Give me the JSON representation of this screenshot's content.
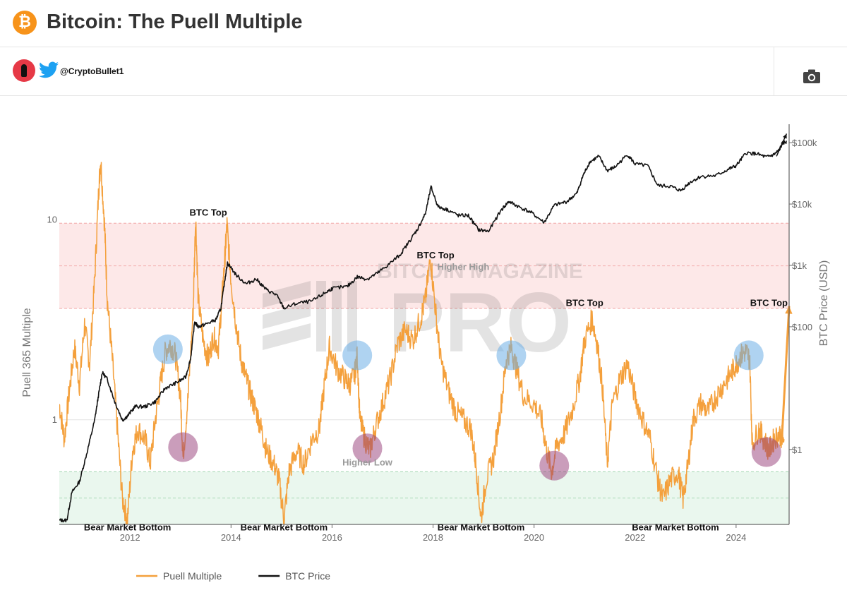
{
  "header": {
    "title": "Bitcoin: The Puell Multiple",
    "logo_icon": "bitcoin-logo-icon",
    "logo_glyph": "₿",
    "brand_color": "#f7931a"
  },
  "author": {
    "handle": "@CryptoBullet1",
    "avatar_icon": "avatar",
    "twitter_icon": "twitter-bird-icon",
    "camera_icon": "camera-icon"
  },
  "watermark": {
    "brand": "BITCOIN MAGAZINE",
    "product": "PRO"
  },
  "chart_data": {
    "type": "line",
    "title": "",
    "xlabel": "",
    "y_left_label": "Puell 365 Multiple",
    "y_right_label": "BTC Price (USD)",
    "y_left_scale": "log",
    "y_right_scale": "log",
    "y_left_ticks": [
      {
        "value": 1,
        "label": "1"
      },
      {
        "value": 10,
        "label": "10"
      }
    ],
    "y_right_ticks": [
      {
        "value": 1,
        "label": "$1"
      },
      {
        "value": 100,
        "label": "$100"
      },
      {
        "value": 1000,
        "label": "$1k"
      },
      {
        "value": 10000,
        "label": "$10k"
      },
      {
        "value": 100000,
        "label": "$100k"
      }
    ],
    "x_ticks": [
      {
        "value": 2012,
        "label": "2012"
      },
      {
        "value": 2014,
        "label": "2014"
      },
      {
        "value": 2016,
        "label": "2016"
      },
      {
        "value": 2018,
        "label": "2018"
      },
      {
        "value": 2020,
        "label": "2020"
      },
      {
        "value": 2022,
        "label": "2022"
      },
      {
        "value": 2024,
        "label": "2024"
      }
    ],
    "xlim": [
      2010.6,
      2025.05
    ],
    "ylim_left": [
      0.3,
      30
    ],
    "ylim_right": [
      0.06,
      200000
    ],
    "zones": [
      {
        "name": "overheated",
        "from": 3.6,
        "to": 9.6,
        "color": "#fde8e8"
      },
      {
        "name": "undervalued",
        "from": 0.3,
        "to": 0.55,
        "color": "#eaf7ee"
      }
    ],
    "legend_position": "bottom-left",
    "series": [
      {
        "name": "Puell Multiple",
        "color": "#f4a03c",
        "points": [
          [
            2010.6,
            1.2
          ],
          [
            2010.7,
            0.8
          ],
          [
            2010.8,
            1.4
          ],
          [
            2010.9,
            2.3
          ],
          [
            2011.0,
            1.5
          ],
          [
            2011.1,
            3.0
          ],
          [
            2011.2,
            1.9
          ],
          [
            2011.3,
            5.0
          ],
          [
            2011.38,
            14.0
          ],
          [
            2011.42,
            20.0
          ],
          [
            2011.5,
            9.0
          ],
          [
            2011.55,
            4.0
          ],
          [
            2011.65,
            2.0
          ],
          [
            2011.75,
            0.9
          ],
          [
            2011.85,
            0.4
          ],
          [
            2011.95,
            0.32
          ],
          [
            2012.05,
            0.7
          ],
          [
            2012.15,
            0.9
          ],
          [
            2012.3,
            0.8
          ],
          [
            2012.4,
            0.6
          ],
          [
            2012.5,
            1.0
          ],
          [
            2012.6,
            1.5
          ],
          [
            2012.7,
            2.2
          ],
          [
            2012.8,
            2.4
          ],
          [
            2012.9,
            2.1
          ],
          [
            2013.0,
            1.3
          ],
          [
            2013.05,
            0.65
          ],
          [
            2013.15,
            1.3
          ],
          [
            2013.25,
            3.5
          ],
          [
            2013.3,
            10.5
          ],
          [
            2013.35,
            4.0
          ],
          [
            2013.45,
            2.5
          ],
          [
            2013.55,
            2.0
          ],
          [
            2013.65,
            2.6
          ],
          [
            2013.75,
            2.3
          ],
          [
            2013.82,
            4.0
          ],
          [
            2013.88,
            6.5
          ],
          [
            2013.92,
            9.4
          ],
          [
            2014.0,
            5.0
          ],
          [
            2014.1,
            3.0
          ],
          [
            2014.2,
            2.0
          ],
          [
            2014.3,
            1.6
          ],
          [
            2014.4,
            1.3
          ],
          [
            2014.5,
            1.1
          ],
          [
            2014.6,
            0.9
          ],
          [
            2014.7,
            0.7
          ],
          [
            2014.85,
            0.6
          ],
          [
            2014.95,
            0.5
          ],
          [
            2015.05,
            0.32
          ],
          [
            2015.15,
            0.55
          ],
          [
            2015.3,
            0.7
          ],
          [
            2015.45,
            0.6
          ],
          [
            2015.6,
            0.8
          ],
          [
            2015.75,
            0.9
          ],
          [
            2015.85,
            1.5
          ],
          [
            2015.95,
            2.3
          ],
          [
            2016.1,
            1.8
          ],
          [
            2016.25,
            1.6
          ],
          [
            2016.35,
            1.5
          ],
          [
            2016.45,
            1.7
          ],
          [
            2016.5,
            2.1
          ],
          [
            2016.55,
            1.0
          ],
          [
            2016.65,
            0.8
          ],
          [
            2016.75,
            0.7
          ],
          [
            2016.85,
            0.9
          ],
          [
            2017.0,
            1.2
          ],
          [
            2017.15,
            1.6
          ],
          [
            2017.3,
            2.4
          ],
          [
            2017.45,
            2.8
          ],
          [
            2017.6,
            2.5
          ],
          [
            2017.75,
            3.2
          ],
          [
            2017.85,
            4.0
          ],
          [
            2017.95,
            6.5
          ],
          [
            2018.05,
            3.5
          ],
          [
            2018.15,
            2.0
          ],
          [
            2018.3,
            1.4
          ],
          [
            2018.45,
            1.1
          ],
          [
            2018.6,
            1.0
          ],
          [
            2018.75,
            0.9
          ],
          [
            2018.85,
            0.6
          ],
          [
            2018.95,
            0.32
          ],
          [
            2019.05,
            0.5
          ],
          [
            2019.2,
            0.65
          ],
          [
            2019.35,
            1.2
          ],
          [
            2019.45,
            2.0
          ],
          [
            2019.55,
            2.3
          ],
          [
            2019.65,
            1.8
          ],
          [
            2019.8,
            1.3
          ],
          [
            2020.0,
            1.2
          ],
          [
            2020.15,
            1.0
          ],
          [
            2020.25,
            0.7
          ],
          [
            2020.35,
            0.55
          ],
          [
            2020.45,
            0.75
          ],
          [
            2020.6,
            0.85
          ],
          [
            2020.75,
            1.1
          ],
          [
            2020.9,
            1.6
          ],
          [
            2021.0,
            2.5
          ],
          [
            2021.15,
            3.2
          ],
          [
            2021.25,
            2.4
          ],
          [
            2021.35,
            1.5
          ],
          [
            2021.45,
            0.6
          ],
          [
            2021.55,
            1.2
          ],
          [
            2021.7,
            1.6
          ],
          [
            2021.85,
            1.9
          ],
          [
            2022.0,
            1.3
          ],
          [
            2022.15,
            1.0
          ],
          [
            2022.3,
            0.8
          ],
          [
            2022.45,
            0.5
          ],
          [
            2022.55,
            0.4
          ],
          [
            2022.7,
            0.5
          ],
          [
            2022.85,
            0.55
          ],
          [
            2022.95,
            0.4
          ],
          [
            2023.05,
            0.6
          ],
          [
            2023.15,
            1.0
          ],
          [
            2023.3,
            1.2
          ],
          [
            2023.45,
            1.1
          ],
          [
            2023.6,
            1.3
          ],
          [
            2023.75,
            1.5
          ],
          [
            2023.9,
            1.7
          ],
          [
            2024.0,
            1.9
          ],
          [
            2024.1,
            2.1
          ],
          [
            2024.2,
            2.2
          ],
          [
            2024.27,
            2.0
          ],
          [
            2024.32,
            0.75
          ],
          [
            2024.45,
            0.9
          ],
          [
            2024.55,
            0.8
          ],
          [
            2024.65,
            0.7
          ],
          [
            2024.75,
            0.8
          ],
          [
            2024.85,
            0.85
          ],
          [
            2024.95,
            0.8
          ]
        ]
      },
      {
        "name": "BTC Price",
        "color": "#111111",
        "points": [
          [
            2010.6,
            0.07
          ],
          [
            2010.75,
            0.07
          ],
          [
            2010.85,
            0.2
          ],
          [
            2011.0,
            0.3
          ],
          [
            2011.15,
            0.9
          ],
          [
            2011.3,
            3.0
          ],
          [
            2011.38,
            8.0
          ],
          [
            2011.45,
            18.0
          ],
          [
            2011.55,
            14.0
          ],
          [
            2011.7,
            6.0
          ],
          [
            2011.85,
            3.0
          ],
          [
            2011.95,
            3.5
          ],
          [
            2012.1,
            5.0
          ],
          [
            2012.3,
            5.0
          ],
          [
            2012.5,
            6.0
          ],
          [
            2012.7,
            10.0
          ],
          [
            2012.9,
            12.0
          ],
          [
            2013.1,
            15.0
          ],
          [
            2013.2,
            30.0
          ],
          [
            2013.28,
            120.0
          ],
          [
            2013.35,
            100.0
          ],
          [
            2013.5,
            110.0
          ],
          [
            2013.7,
            130.0
          ],
          [
            2013.8,
            200.0
          ],
          [
            2013.88,
            600.0
          ],
          [
            2013.93,
            1100.0
          ],
          [
            2014.1,
            700.0
          ],
          [
            2014.3,
            500.0
          ],
          [
            2014.5,
            600.0
          ],
          [
            2014.7,
            400.0
          ],
          [
            2014.9,
            330.0
          ],
          [
            2015.05,
            200.0
          ],
          [
            2015.3,
            240.0
          ],
          [
            2015.6,
            260.0
          ],
          [
            2015.85,
            350.0
          ],
          [
            2016.0,
            420.0
          ],
          [
            2016.3,
            450.0
          ],
          [
            2016.5,
            650.0
          ],
          [
            2016.7,
            600.0
          ],
          [
            2016.9,
            750.0
          ],
          [
            2017.1,
            1000.0
          ],
          [
            2017.35,
            1500.0
          ],
          [
            2017.55,
            2600.0
          ],
          [
            2017.7,
            4000.0
          ],
          [
            2017.85,
            7000.0
          ],
          [
            2017.96,
            19000.0
          ],
          [
            2018.1,
            9000.0
          ],
          [
            2018.3,
            8000.0
          ],
          [
            2018.5,
            6500.0
          ],
          [
            2018.7,
            6500.0
          ],
          [
            2018.9,
            3800.0
          ],
          [
            2019.1,
            3600.0
          ],
          [
            2019.35,
            8000.0
          ],
          [
            2019.5,
            11000.0
          ],
          [
            2019.7,
            9000.0
          ],
          [
            2019.95,
            7200.0
          ],
          [
            2020.2,
            5000.0
          ],
          [
            2020.4,
            9500.0
          ],
          [
            2020.65,
            11000.0
          ],
          [
            2020.85,
            15000.0
          ],
          [
            2020.97,
            29000.0
          ],
          [
            2021.1,
            48000.0
          ],
          [
            2021.28,
            60000.0
          ],
          [
            2021.45,
            35000.0
          ],
          [
            2021.6,
            40000.0
          ],
          [
            2021.85,
            64000.0
          ],
          [
            2022.0,
            45000.0
          ],
          [
            2022.25,
            42000.0
          ],
          [
            2022.45,
            20000.0
          ],
          [
            2022.7,
            19500.0
          ],
          [
            2022.9,
            16500.0
          ],
          [
            2023.1,
            23000.0
          ],
          [
            2023.3,
            28000.0
          ],
          [
            2023.6,
            29000.0
          ],
          [
            2023.85,
            37000.0
          ],
          [
            2024.0,
            42000.0
          ],
          [
            2024.2,
            68000.0
          ],
          [
            2024.4,
            66000.0
          ],
          [
            2024.6,
            58000.0
          ],
          [
            2024.75,
            64000.0
          ],
          [
            2024.85,
            75000.0
          ],
          [
            2024.92,
            98000.0
          ],
          [
            2025.0,
            105000.0
          ]
        ]
      }
    ],
    "annotations": [
      {
        "text": "BTC Top",
        "x": 2013.55,
        "y": 10.5,
        "axis": "left",
        "style": "bold"
      },
      {
        "text": "BTC Top",
        "x": 2018.05,
        "y": 6.4,
        "axis": "left",
        "style": "bold"
      },
      {
        "text": "BTC Top",
        "x": 2021.0,
        "y": 3.7,
        "axis": "left",
        "style": "bold"
      },
      {
        "text": "BTC Top",
        "x": 2024.65,
        "y": 3.7,
        "axis": "left",
        "style": "bold"
      },
      {
        "text": "Higher High",
        "x": 2018.6,
        "y": 5.6,
        "axis": "left",
        "style": "grey"
      },
      {
        "text": "Higher Low",
        "x": 2016.7,
        "y": 0.59,
        "axis": "left",
        "style": "grey"
      },
      {
        "text": "Bear Market Bottom",
        "x": 2011.95,
        "y": 0.28,
        "axis": "left",
        "style": "bold"
      },
      {
        "text": "Bear Market Bottom",
        "x": 2015.05,
        "y": 0.28,
        "axis": "left",
        "style": "bold"
      },
      {
        "text": "Bear Market Bottom",
        "x": 2018.95,
        "y": 0.28,
        "axis": "left",
        "style": "bold"
      },
      {
        "text": "Bear Market Bottom",
        "x": 2022.8,
        "y": 0.28,
        "axis": "left",
        "style": "bold"
      }
    ],
    "circles": [
      {
        "color": "blue",
        "x": 2012.75,
        "y": 2.25
      },
      {
        "color": "blue",
        "x": 2016.5,
        "y": 2.1
      },
      {
        "color": "blue",
        "x": 2019.55,
        "y": 2.1
      },
      {
        "color": "blue",
        "x": 2024.25,
        "y": 2.1
      },
      {
        "color": "purple",
        "x": 2013.05,
        "y": 0.73
      },
      {
        "color": "purple",
        "x": 2016.7,
        "y": 0.72
      },
      {
        "color": "purple",
        "x": 2020.4,
        "y": 0.59
      },
      {
        "color": "purple",
        "x": 2024.6,
        "y": 0.69
      }
    ],
    "arrows": [
      {
        "from": [
          2024.9,
          0.75
        ],
        "to": [
          2025.05,
          3.7
        ],
        "color": "#f4a03c",
        "axis": "left"
      },
      {
        "from": [
          2024.8,
          60000
        ],
        "to": [
          2025.0,
          140000
        ],
        "color": "#111111",
        "axis": "right"
      }
    ]
  }
}
